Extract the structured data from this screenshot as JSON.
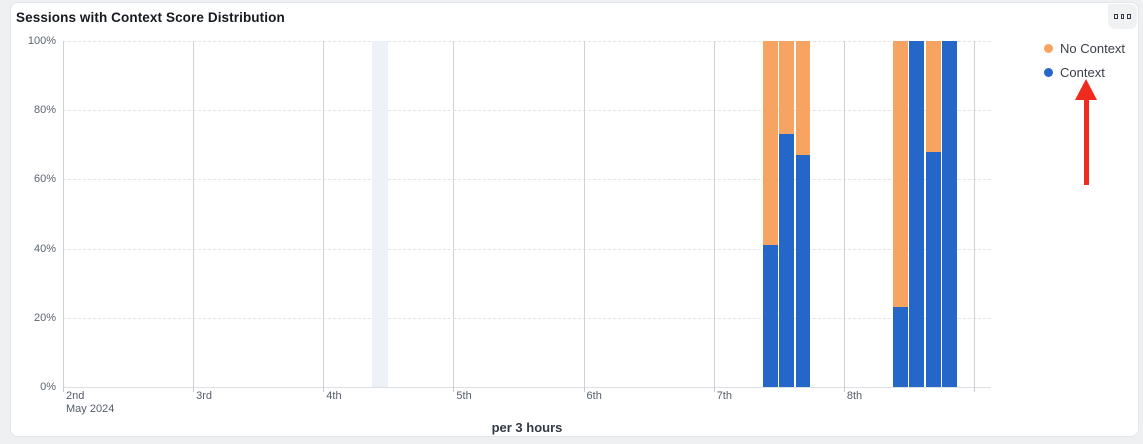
{
  "card": {
    "title": "Sessions with Context Score Distribution",
    "menu_icon": "three-squares-menu-icon"
  },
  "legend": {
    "items": [
      {
        "label": "No Context",
        "color": "#F7A462"
      },
      {
        "label": "Context",
        "color": "#2567C9"
      }
    ]
  },
  "annotation": {
    "type": "red-arrow-up",
    "points_at": "Context legend item",
    "color": "#ee2b1c"
  },
  "chart_data": {
    "type": "bar",
    "stacked": true,
    "stack_unit": "percent",
    "title": "Sessions with Context Score Distribution",
    "xlabel": "per 3 hours",
    "ylabel": "",
    "ylim": [
      0,
      100
    ],
    "y_ticks": [
      "0%",
      "20%",
      "40%",
      "60%",
      "80%",
      "100%"
    ],
    "x_ticks": [
      {
        "label": "2nd",
        "sub": "May 2024"
      },
      {
        "label": "3rd",
        "sub": ""
      },
      {
        "label": "4th",
        "sub": ""
      },
      {
        "label": "5th",
        "sub": ""
      },
      {
        "label": "6th",
        "sub": ""
      },
      {
        "label": "7th",
        "sub": ""
      },
      {
        "label": "8th",
        "sub": ""
      },
      {
        "label": "",
        "sub": ""
      }
    ],
    "grid": {
      "horizontal": "dashed",
      "vertical": "solid-per-day"
    },
    "legend_position": "top-right",
    "series_colors": {
      "Context": "#2567C9",
      "No Context": "#F7A462"
    },
    "highlight_band": {
      "day": "4th",
      "day_index": 2,
      "start_hour": 9,
      "duration_hours": 3,
      "color": "#edf2f8"
    },
    "bars": [
      {
        "day": "7th",
        "day_index": 5,
        "start_hour": 9,
        "context_pct": 41,
        "no_context_pct": 59
      },
      {
        "day": "7th",
        "day_index": 5,
        "start_hour": 12,
        "context_pct": 73,
        "no_context_pct": 27
      },
      {
        "day": "7th",
        "day_index": 5,
        "start_hour": 15,
        "context_pct": 67,
        "no_context_pct": 33
      },
      {
        "day": "8th",
        "day_index": 6,
        "start_hour": 9,
        "context_pct": 23,
        "no_context_pct": 77
      },
      {
        "day": "8th",
        "day_index": 6,
        "start_hour": 12,
        "context_pct": 100,
        "no_context_pct": 0
      },
      {
        "day": "8th",
        "day_index": 6,
        "start_hour": 15,
        "context_pct": 68,
        "no_context_pct": 32
      },
      {
        "day": "8th",
        "day_index": 6,
        "start_hour": 18,
        "context_pct": 100,
        "no_context_pct": 0
      }
    ]
  }
}
